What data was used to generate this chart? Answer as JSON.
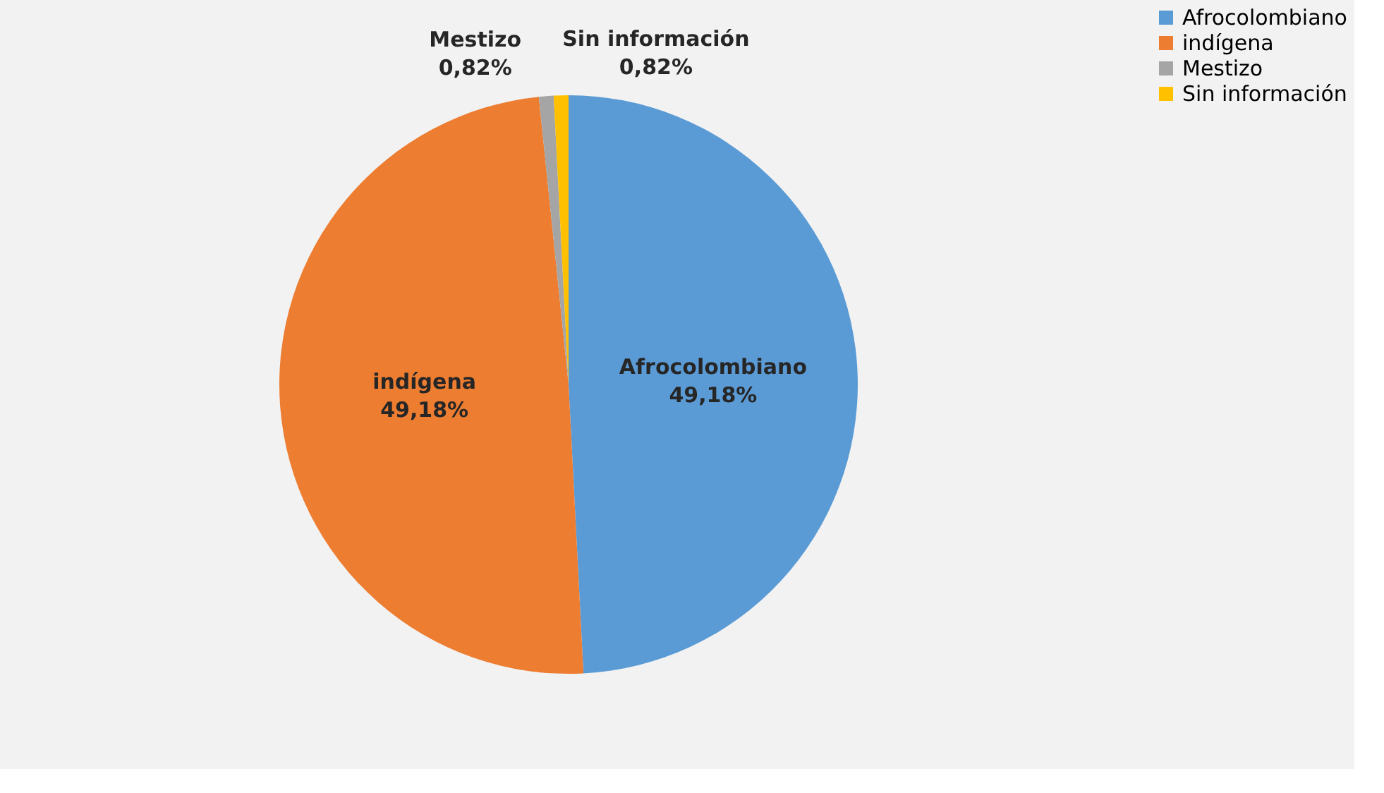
{
  "chart_data": {
    "type": "pie",
    "categories": [
      "Afrocolombiano",
      "indígena",
      "Mestizo",
      "Sin información"
    ],
    "values": [
      49.18,
      49.18,
      0.82,
      0.82
    ],
    "value_labels": [
      "49,18%",
      "49,18%",
      "0,82%",
      "0,82%"
    ],
    "colors": [
      "#5b9bd5",
      "#ed7d31",
      "#a5a5a5",
      "#ffc000"
    ],
    "legend": "right"
  }
}
